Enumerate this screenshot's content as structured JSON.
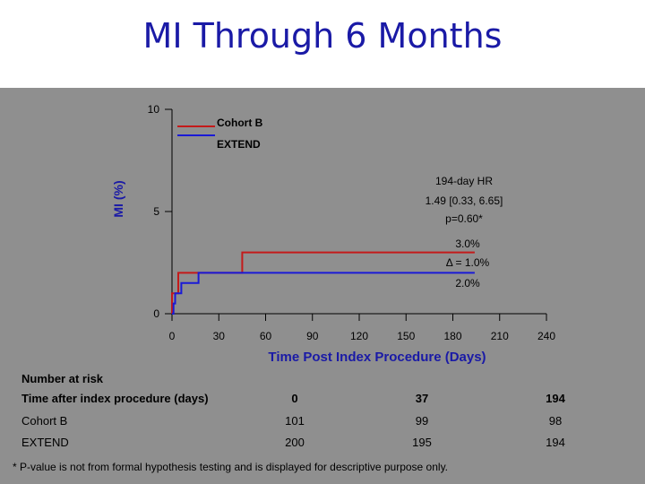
{
  "title": "MI Through 6 Months",
  "chart_data": {
    "type": "line",
    "ylabel": "MI (%)",
    "xlabel": "Time Post Index Procedure (Days)",
    "x_ticks": [
      0,
      30,
      60,
      90,
      120,
      150,
      180,
      210,
      240
    ],
    "y_ticks": [
      0,
      5,
      10
    ],
    "xlim": [
      0,
      240
    ],
    "ylim": [
      0,
      10
    ],
    "series": [
      {
        "name": "Cohort B",
        "color": "#c41a1a",
        "step_x": [
          0,
          0,
          4,
          4,
          45,
          45,
          194
        ],
        "step_y": [
          0,
          1.0,
          1.0,
          2.0,
          2.0,
          3.0,
          3.0
        ]
      },
      {
        "name": "EXTEND",
        "color": "#1a1ad6",
        "step_x": [
          0,
          1,
          1,
          2,
          2,
          6,
          6,
          17,
          17,
          194
        ],
        "step_y": [
          0,
          0,
          0.5,
          0.5,
          1.0,
          1.0,
          1.5,
          1.5,
          2.0,
          2.0
        ]
      }
    ],
    "annotations": {
      "hr_lines": [
        "194-day HR",
        "1.49 [0.33, 6.65]",
        "p=0.60*"
      ],
      "cohort_b_rate": "3.0%",
      "delta": "Δ = 1.0%",
      "extend_rate": "2.0%"
    }
  },
  "risk_table": {
    "heading": "Number at risk",
    "time_label": "Time after index procedure (days)",
    "times": [
      "0",
      "37",
      "194"
    ],
    "rows": [
      {
        "label": "Cohort B",
        "values": [
          "101",
          "99",
          "98"
        ]
      },
      {
        "label": "EXTEND",
        "values": [
          "200",
          "195",
          "194"
        ]
      }
    ]
  },
  "footnote": "* P-value is not from formal hypothesis testing and is displayed for descriptive purpose only."
}
